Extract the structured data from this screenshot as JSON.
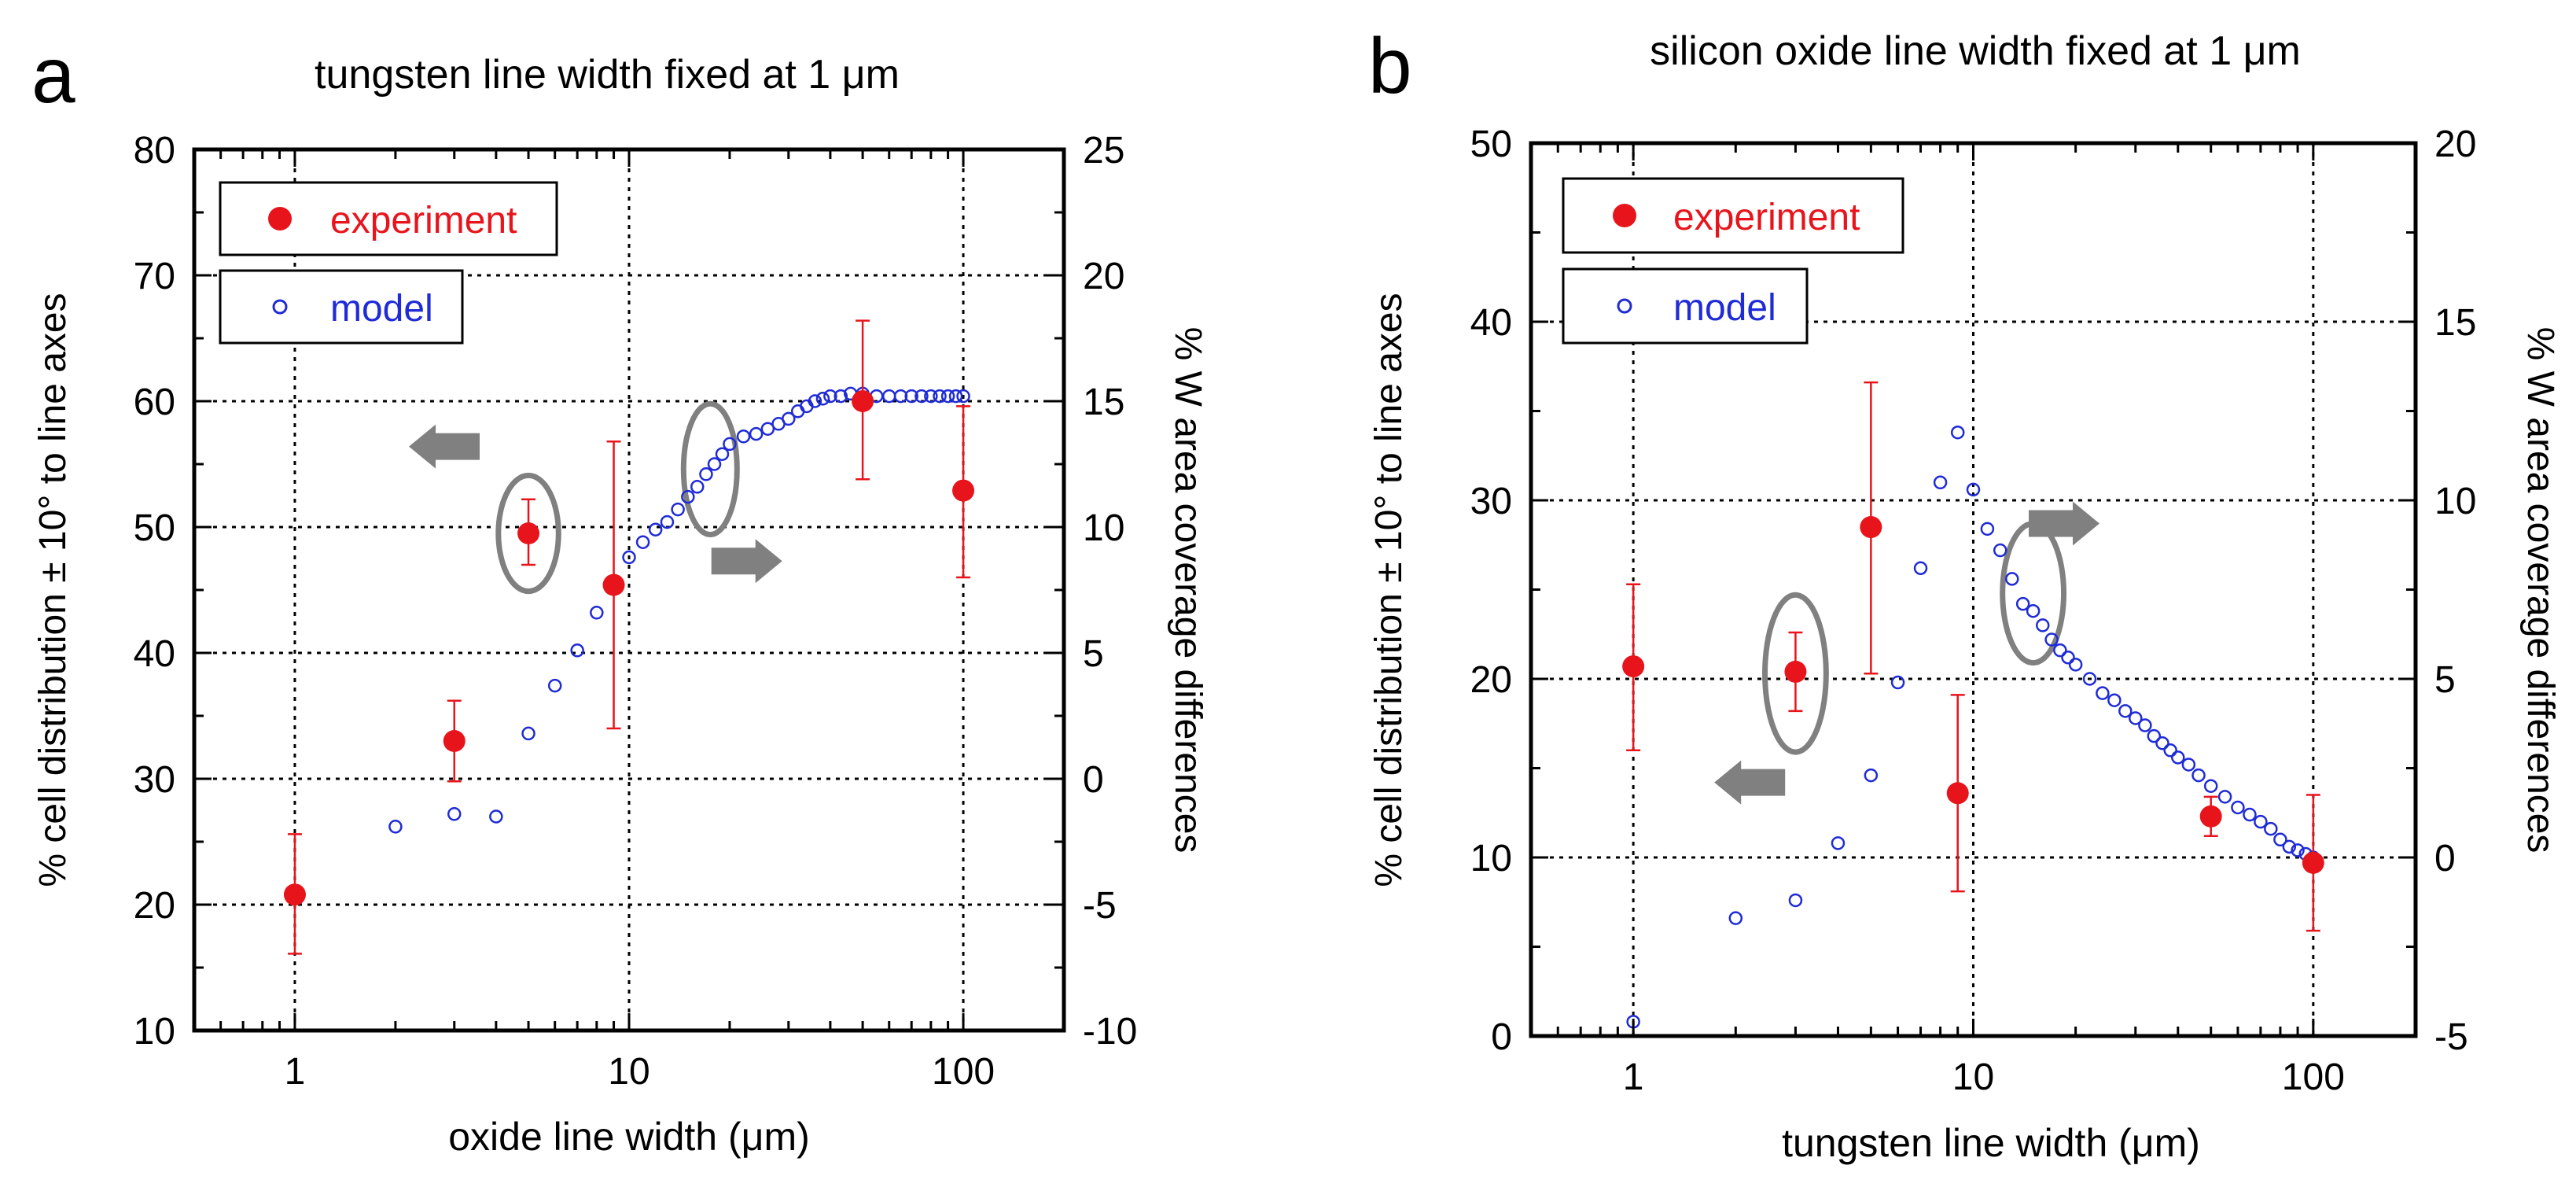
{
  "chart_data": [
    {
      "panel_label": "a",
      "type": "scatter",
      "title": "tungsten line width fixed at 1 μm",
      "xlabel": "oxide line width (μm)",
      "ylabel": "% cell distribution ± 10° to line axes",
      "y2label": "% W area coverage differences",
      "xscale": "log",
      "xlim": [
        0.5,
        200
      ],
      "ylim": [
        10,
        80
      ],
      "y2lim": [
        -10,
        25
      ],
      "x_ticks": [
        "1",
        "10",
        "100"
      ],
      "y_ticks": [
        "80",
        "70",
        "60",
        "50",
        "40",
        "30",
        "20",
        "10"
      ],
      "y2_ticks": [
        "25",
        "20",
        "15",
        "10",
        "5",
        "0",
        "-5",
        "-10"
      ],
      "grid": true,
      "legend": [
        "experiment",
        "model"
      ],
      "colors": {
        "experiment": "#e8141c",
        "model": "#1f2bd6",
        "annotation": "#808080"
      },
      "series": [
        {
          "name": "experiment",
          "axis": "left",
          "x": [
            1,
            3,
            5,
            9,
            50,
            100
          ],
          "y": [
            20.8,
            33.0,
            49.5,
            45.4,
            60.0,
            52.9
          ],
          "err_low": [
            16.1,
            29.8,
            47.0,
            34.0,
            53.8,
            46.0
          ],
          "err_high": [
            25.6,
            36.2,
            52.2,
            56.8,
            66.4,
            59.6
          ]
        },
        {
          "name": "model",
          "axis": "right",
          "x": [
            1,
            2,
            3,
            4,
            5,
            6,
            7,
            8,
            9,
            10,
            11,
            12,
            13,
            14,
            15,
            16,
            17,
            18,
            19,
            20,
            22,
            24,
            26,
            28,
            30,
            32,
            34,
            36,
            38,
            40,
            43,
            46,
            50,
            55,
            60,
            65,
            70,
            75,
            80,
            85,
            90,
            95,
            100
          ],
          "y": [
            -4.6,
            -1.9,
            -1.4,
            -1.5,
            1.8,
            3.7,
            5.1,
            6.6,
            7.6,
            8.8,
            9.4,
            9.9,
            10.2,
            10.7,
            11.2,
            11.6,
            12.1,
            12.5,
            12.9,
            13.3,
            13.6,
            13.7,
            13.9,
            14.1,
            14.3,
            14.6,
            14.8,
            15.0,
            15.1,
            15.2,
            15.2,
            15.3,
            15.3,
            15.2,
            15.2,
            15.2,
            15.2,
            15.2,
            15.2,
            15.2,
            15.2,
            15.2,
            15.2
          ]
        }
      ],
      "arrows": [
        {
          "points_to": "left",
          "x": 2.8,
          "y_axis": "left",
          "y": 56.4
        },
        {
          "points_to": "right",
          "x": 22.5,
          "y_axis": "left",
          "y": 47.3
        }
      ],
      "ellipses": [
        {
          "x": 5.0,
          "y": 49.5,
          "rx_decades": 0.09,
          "ry_units": 4.6
        },
        {
          "x": 17.5,
          "y": 54.6,
          "rx_decades": 0.08,
          "ry_units": 5.2
        }
      ]
    },
    {
      "panel_label": "b",
      "type": "scatter",
      "title": "silicon oxide line width fixed at 1 μm",
      "xlabel": "tungsten line width (μm)",
      "ylabel": "% cell distribution ± 10° to line axes",
      "y2label": "% W area coverage differences",
      "xscale": "log",
      "xlim": [
        0.5,
        200
      ],
      "ylim": [
        0,
        50
      ],
      "y2lim": [
        -5,
        20
      ],
      "x_ticks": [
        "1",
        "10",
        "100"
      ],
      "y_ticks": [
        "50",
        "40",
        "30",
        "20",
        "10",
        "0"
      ],
      "y2_ticks": [
        "20",
        "15",
        "10",
        "5",
        "0",
        "-5"
      ],
      "grid": true,
      "legend": [
        "experiment",
        "model"
      ],
      "colors": {
        "experiment": "#e8141c",
        "model": "#1f2bd6",
        "annotation": "#808080"
      },
      "series": [
        {
          "name": "experiment",
          "axis": "left",
          "x": [
            1,
            3,
            5,
            9,
            50,
            100
          ],
          "y": [
            20.7,
            20.4,
            28.5,
            13.6,
            12.3,
            9.7
          ],
          "err_low": [
            16.0,
            18.2,
            20.3,
            8.1,
            11.2,
            5.9
          ],
          "err_high": [
            25.3,
            22.6,
            36.6,
            19.1,
            13.4,
            13.5
          ]
        },
        {
          "name": "model",
          "axis": "right",
          "x": [
            1,
            2,
            3,
            4,
            5,
            6,
            7,
            8,
            9,
            10,
            11,
            12,
            13,
            14,
            15,
            16,
            17,
            18,
            19,
            20,
            22,
            24,
            26,
            28,
            30,
            32,
            34,
            36,
            38,
            40,
            43,
            46,
            50,
            55,
            60,
            65,
            70,
            75,
            80,
            85,
            90,
            95,
            100
          ],
          "y": [
            -4.6,
            -1.7,
            -1.2,
            0.4,
            2.3,
            4.9,
            8.1,
            10.5,
            11.9,
            10.3,
            9.2,
            8.6,
            7.8,
            7.1,
            6.9,
            6.5,
            6.1,
            5.8,
            5.6,
            5.4,
            5.0,
            4.6,
            4.4,
            4.1,
            3.9,
            3.7,
            3.4,
            3.2,
            3.0,
            2.8,
            2.6,
            2.3,
            2.0,
            1.7,
            1.4,
            1.2,
            1.0,
            0.8,
            0.5,
            0.3,
            0.2,
            0.1,
            0.0
          ]
        }
      ],
      "arrows": [
        {
          "points_to": "left",
          "x": 2.2,
          "y_axis": "left",
          "y": 14.2
        },
        {
          "points_to": "right",
          "x": 18.5,
          "y_axis": "left",
          "y": 28.7
        }
      ],
      "ellipses": [
        {
          "x": 3.0,
          "y": 20.3,
          "rx_decades": 0.09,
          "ry_units": 4.4
        },
        {
          "x": 15.0,
          "y": 24.8,
          "rx_decades": 0.09,
          "ry_units": 3.9
        }
      ]
    }
  ]
}
